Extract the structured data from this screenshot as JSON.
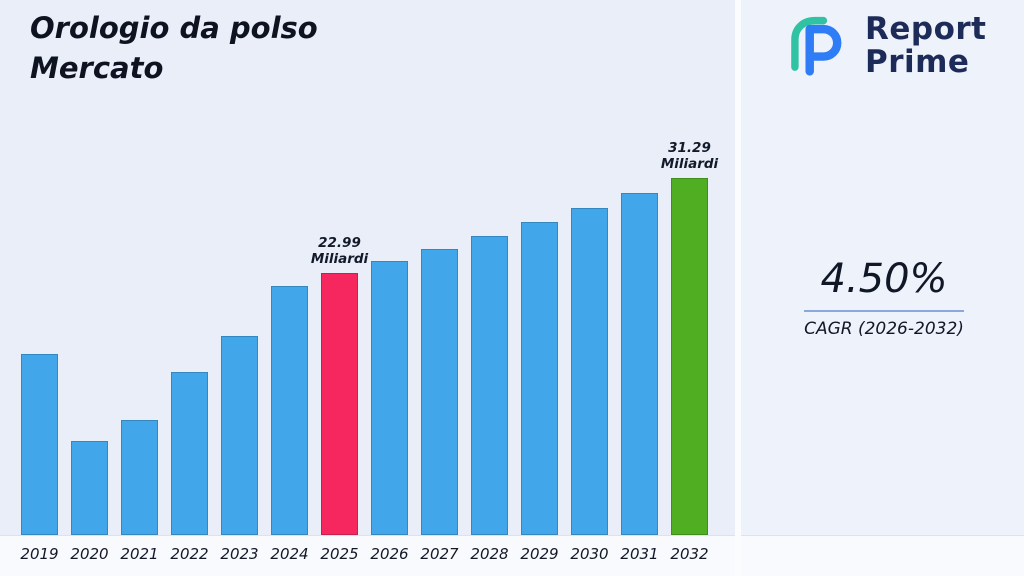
{
  "header": {
    "title": "Orologio da polso Mercato"
  },
  "logo": {
    "line1": "Report",
    "line2": "Prime",
    "mark_teal": "#2fc3a4",
    "mark_blue": "#2e7df6",
    "text_color": "#1d2b59"
  },
  "stats": {
    "cagr_value": "4.50%",
    "cagr_label": "CAGR (2026-2032)",
    "accent_line_color": "#8ba8dc"
  },
  "chart_data": {
    "type": "bar",
    "title": "Orologio da polso Mercato",
    "unit": "Miliardi",
    "categories": [
      "2019",
      "2020",
      "2021",
      "2022",
      "2023",
      "2024",
      "2025",
      "2026",
      "2027",
      "2028",
      "2029",
      "2030",
      "2031",
      "2032"
    ],
    "values": [
      15.9,
      8.2,
      10.1,
      14.3,
      17.4,
      21.8,
      22.99,
      24.02,
      25.11,
      26.24,
      27.42,
      28.65,
      29.94,
      31.29
    ],
    "ylim": [
      0,
      35
    ],
    "grid": false,
    "legend": false,
    "xlabel": "",
    "ylabel": "",
    "bar_color_default": "#41a7ea",
    "bar_colors": {
      "2025": "#f5275e",
      "2032": "#4fae21"
    },
    "bar_labels": {
      "2025": [
        "22.99",
        "Miliardi"
      ],
      "2032": [
        "31.29",
        "Miliardi"
      ]
    },
    "annotations": [
      {
        "category": "2025",
        "text": "22.99 Miliardi"
      },
      {
        "category": "2032",
        "text": "31.29 Miliardi"
      }
    ]
  }
}
